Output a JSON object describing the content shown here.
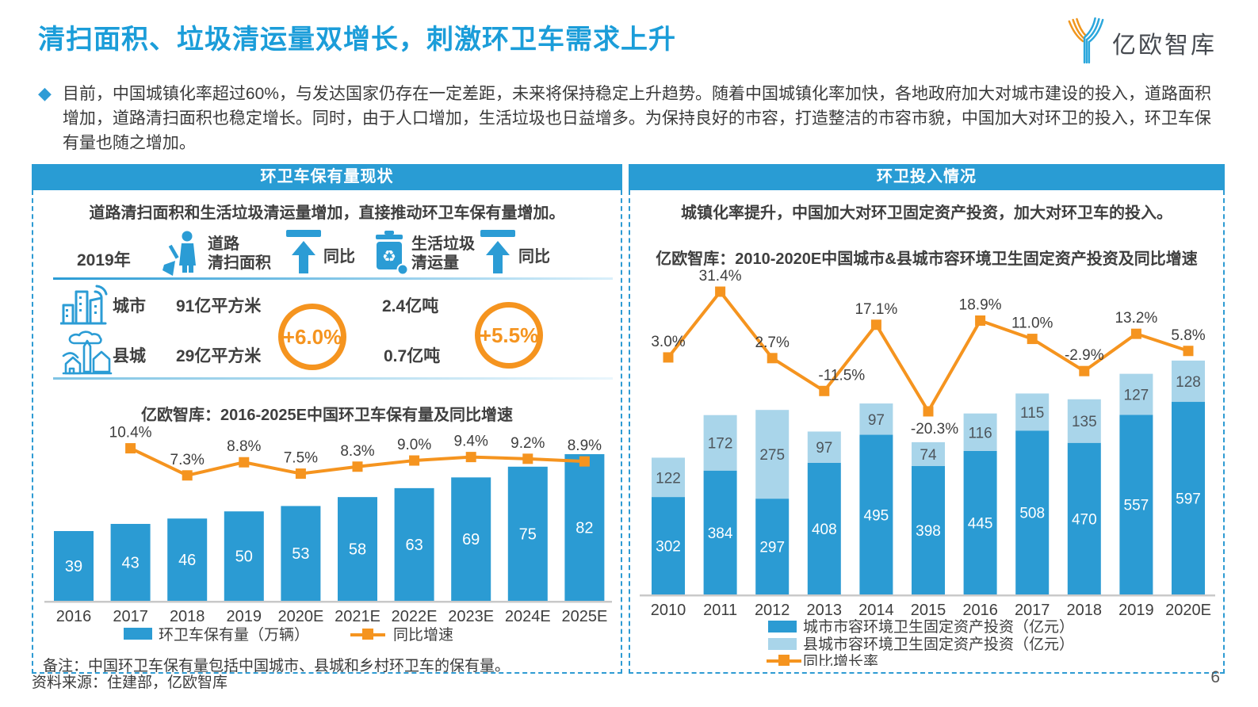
{
  "page": {
    "title": "清扫面积、垃圾清运量双增长，刺激环卫车需求上升",
    "logo_text": "亿欧智库",
    "intro_bullet": "◆",
    "intro": "目前，中国城镇化率超过60%，与发达国家仍存在一定差距，未来将保持稳定上升趋势。随着中国城镇化率加快，各地政府加大对城市建设的投入，道路面积增加，道路清扫面积也稳定增长。同时，由于人口增加，生活垃圾也日益增多。为保持良好的市容，打造整洁的市容市貌，中国加大对环卫的投入，环卫车保有量也随之增加。",
    "source": "资料来源：住建部，亿欧智库",
    "page_number": "6"
  },
  "colors": {
    "bar_blue": "#2b9bd3",
    "bar_light_blue": "#a9d5ea",
    "line_orange": "#f5941f",
    "header_blue": "#299cd4",
    "title_blue": "#1b9dd9",
    "axis_gray": "#c9c9c9",
    "label_dark": "#3e3e3e",
    "county_label": "#4e565c"
  },
  "icons": {
    "logo": "yiou-y-logo-icon",
    "road": "street-sweeper-icon",
    "yoy": "up-arrow-icon",
    "garbage": "recycle-bin-icon",
    "city": "city-buildings-icon",
    "county": "county-town-icon"
  },
  "left_panel": {
    "header": "环卫车保有量现状",
    "subtitle": "道路清扫面积和生活垃圾清运量增加，直接推动环卫车保有量增加。",
    "table": {
      "year": "2019年",
      "col_road": "道路\n清扫面积",
      "col_yoy1": "同比",
      "col_garbage": "生活垃圾\n清运量",
      "col_yoy2": "同比",
      "road_yoy": "+6.0%",
      "garbage_yoy": "+5.5%",
      "rows": [
        {
          "label": "城市",
          "road": "91亿平方米",
          "garbage": "2.4亿吨"
        },
        {
          "label": "县城",
          "road": "29亿平方米",
          "garbage": "0.7亿吨"
        }
      ]
    },
    "chart_title": "亿欧智库：2016-2025E中国环卫车保有量及同比增速",
    "note": "备注：中国环卫车保有量包括中国城市、县城和乡村环卫车的保有量。"
  },
  "right_panel": {
    "header": "环卫投入情况",
    "subtitle": "城镇化率提升，中国加大对环卫固定资产投资，加大对环卫车的投入。",
    "chart_title": "亿欧智库：2010-2020E中国城市&县城市容环境卫生固定资产投资及同比增速"
  },
  "chart_data": [
    {
      "type": "bar",
      "title": "亿欧智库：2016-2025E中国环卫车保有量及同比增速",
      "categories": [
        "2016",
        "2017",
        "2018",
        "2019",
        "2020E",
        "2021E",
        "2022E",
        "2023E",
        "2024E",
        "2025E"
      ],
      "series": [
        {
          "name": "环卫车保有量（万辆）",
          "type": "bar",
          "values": [
            39,
            43,
            46,
            50,
            53,
            58,
            63,
            69,
            75,
            82
          ]
        },
        {
          "name": "同比增速",
          "type": "line",
          "unit": "%",
          "values": [
            null,
            "10.4",
            "7.3",
            "8.8",
            "7.5",
            "8.3",
            "9.0",
            "9.4",
            "9.2",
            "8.9"
          ]
        }
      ],
      "ylim": [
        0,
        82
      ],
      "legend_position": "bottom",
      "grid": false
    },
    {
      "type": "bar",
      "title": "亿欧智库：2010-2020E中国城市&县城市容环境卫生固定资产投资及同比增速",
      "categories": [
        "2010",
        "2011",
        "2012",
        "2013",
        "2014",
        "2015",
        "2016",
        "2017",
        "2018",
        "2019",
        "2020E"
      ],
      "series": [
        {
          "name": "城市市容环境卫生固定资产投资（亿元）",
          "type": "bar",
          "values": [
            302,
            384,
            297,
            408,
            495,
            398,
            445,
            508,
            470,
            557,
            597
          ]
        },
        {
          "name": "县城市容环境卫生固定资产投资（亿元）",
          "type": "bar",
          "values": [
            122,
            172,
            275,
            97,
            97,
            74,
            116,
            115,
            135,
            127,
            128
          ]
        },
        {
          "name": "同比增长率",
          "type": "line",
          "unit": "%",
          "values": [
            "3.0",
            "31.4",
            "2.7",
            "-11.5",
            "17.1",
            "-20.3",
            "18.9",
            "11.0",
            "-2.9",
            "13.2",
            "5.8"
          ]
        }
      ],
      "stacked": true,
      "ylim": [
        0,
        725
      ],
      "legend_position": "bottom",
      "grid": false
    }
  ]
}
